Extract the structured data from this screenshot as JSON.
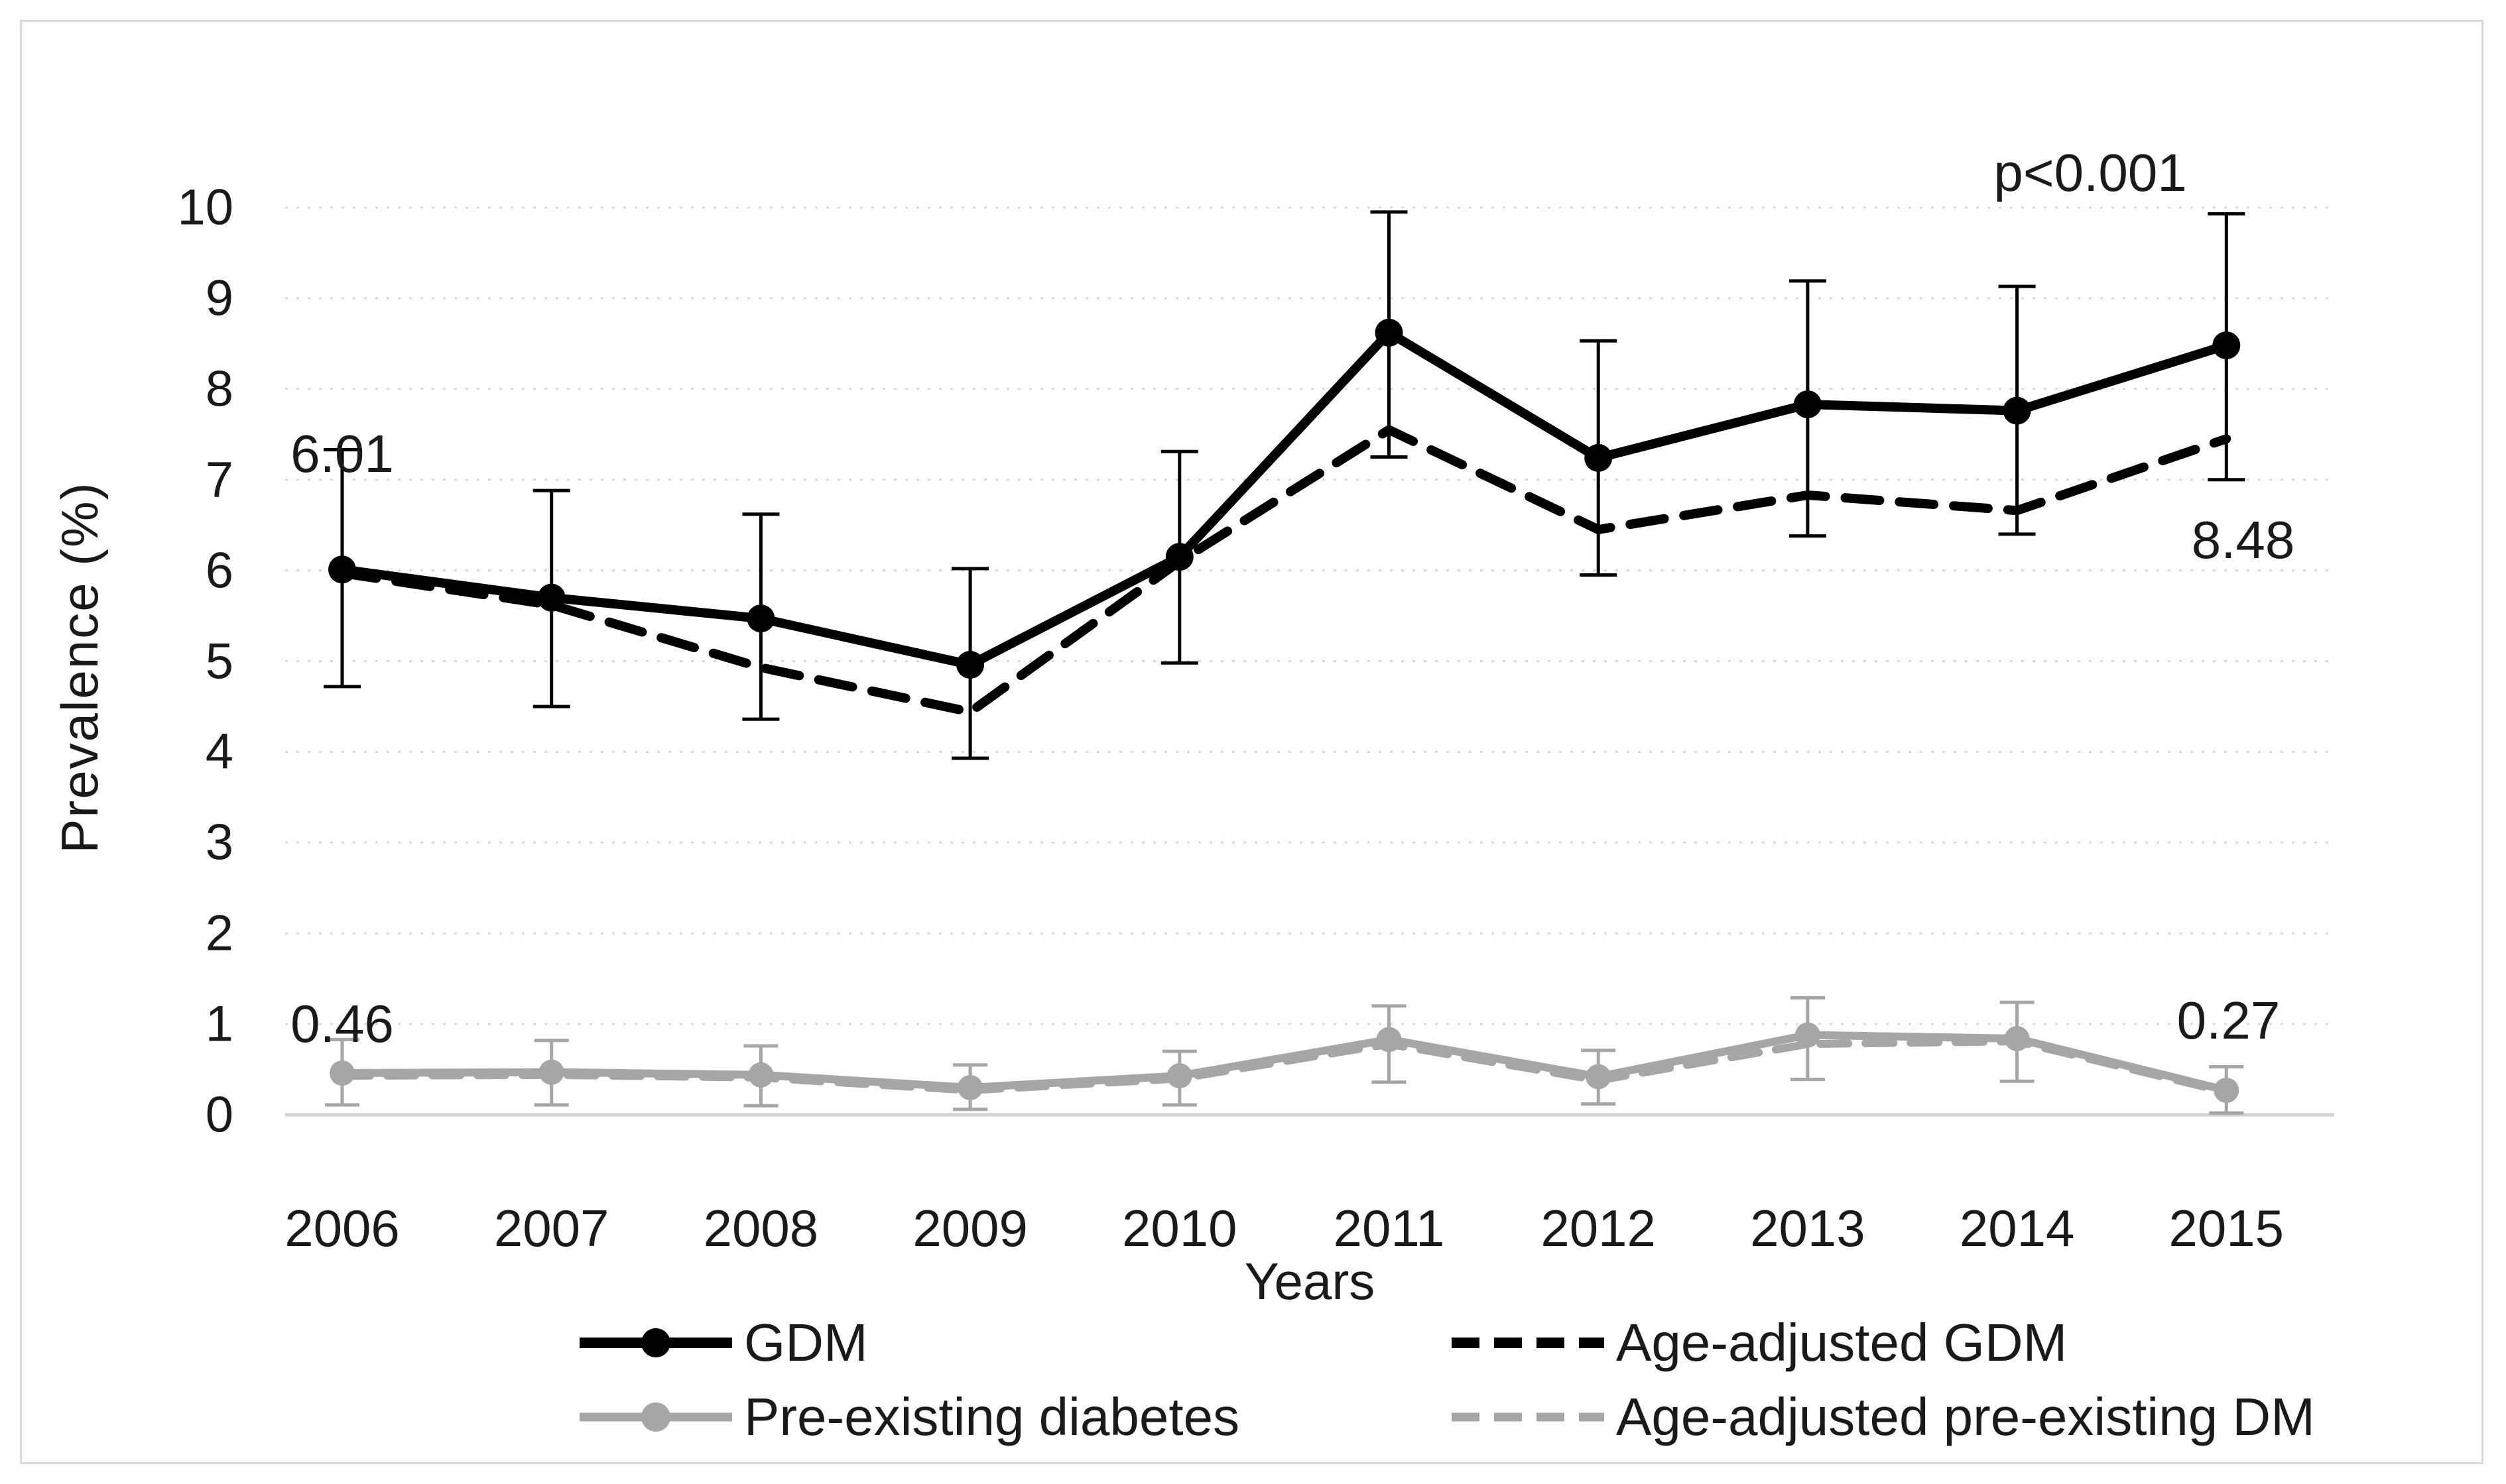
{
  "figure": {
    "background": "#ffffff",
    "frame_color": "#d9d9d9"
  },
  "chart_data": {
    "type": "line",
    "title": "",
    "xlabel": "Years",
    "ylabel": "Prevalence (%)",
    "categories": [
      "2006",
      "2007",
      "2008",
      "2009",
      "2010",
      "2011",
      "2012",
      "2013",
      "2014",
      "2015"
    ],
    "y_ticks": [
      "0",
      "1",
      "2",
      "3",
      "4",
      "5",
      "6",
      "7",
      "8",
      "9",
      "10"
    ],
    "ylim": [
      0,
      10
    ],
    "grid": "horizontal dotted gridlines at each integer",
    "legend_position": "bottom, two columns",
    "colors": {
      "gdm": "#000000",
      "pre_existing": "#a6a6a6",
      "gridline": "#d9d9d9",
      "axis_line": "#d2d2d2",
      "text": "#1a1a1a"
    },
    "series": [
      {
        "name": "GDM",
        "style": "solid",
        "color": "#000000",
        "marker": "circle",
        "values": [
          6.01,
          5.7,
          5.47,
          4.96,
          6.15,
          8.62,
          7.24,
          7.83,
          7.76,
          8.48
        ],
        "error_low": [
          4.72,
          4.5,
          4.36,
          3.93,
          4.98,
          7.25,
          5.95,
          6.38,
          6.4,
          7.0
        ],
        "error_high": [
          7.33,
          6.88,
          6.62,
          6.02,
          7.31,
          9.95,
          8.53,
          9.19,
          9.13,
          9.93
        ]
      },
      {
        "name": "Age-adjusted GDM",
        "style": "dashed",
        "color": "#000000",
        "marker": "none",
        "values": [
          5.97,
          5.62,
          4.93,
          4.44,
          6.1,
          7.55,
          6.45,
          6.83,
          6.66,
          7.45
        ]
      },
      {
        "name": "Pre-existing diabetes",
        "style": "solid",
        "color": "#a6a6a6",
        "marker": "circle",
        "values": [
          0.46,
          0.47,
          0.44,
          0.3,
          0.43,
          0.83,
          0.42,
          0.88,
          0.84,
          0.27
        ],
        "error_low": [
          0.11,
          0.11,
          0.1,
          0.06,
          0.11,
          0.36,
          0.12,
          0.39,
          0.37,
          0.02
        ],
        "error_high": [
          0.83,
          0.82,
          0.76,
          0.55,
          0.7,
          1.2,
          0.71,
          1.29,
          1.24,
          0.53
        ]
      },
      {
        "name": "Age-adjusted pre-existing DM",
        "style": "dashed",
        "color": "#a6a6a6",
        "marker": "none",
        "values": [
          0.43,
          0.44,
          0.41,
          0.27,
          0.4,
          0.78,
          0.38,
          0.78,
          0.81,
          0.25
        ]
      }
    ],
    "annotations": [
      {
        "id": "gdm-first-value",
        "text": "6.01",
        "year_index": 0.0,
        "value": 7.28
      },
      {
        "id": "p-value",
        "text": "p<0.001",
        "year_index": 8.35,
        "value": 10.38
      },
      {
        "id": "gdm-last-value",
        "text": "8.48",
        "year_index": 9.08,
        "value": 6.33
      },
      {
        "id": "pre-first-value",
        "text": "0.46",
        "year_index": 0.0,
        "value": 1.0
      },
      {
        "id": "pre-last-value",
        "text": "0.27",
        "year_index": 9.01,
        "value": 1.04
      }
    ]
  }
}
